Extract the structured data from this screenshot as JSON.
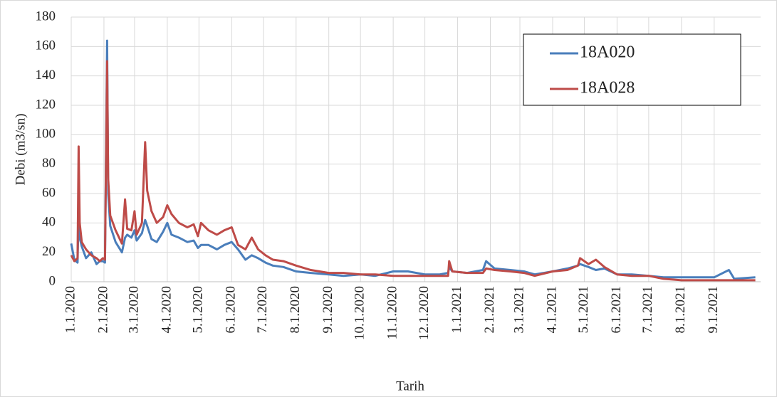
{
  "chart_data": {
    "type": "line",
    "y_label": "Debi (m3/sn)",
    "x_label": "Tarih",
    "x": [
      "1.1.2020",
      "4.1.2020",
      "7.1.2020",
      "8.1.2020",
      "9.1.2020",
      "11.1.2020",
      "15.1.2020",
      "20.1.2020",
      "25.1.2020",
      "28.1.2020",
      "31.1.2020",
      "2.2.2020",
      "4.2.2020",
      "5.2.2020",
      "7.2.2020",
      "12.2.2020",
      "18.2.2020",
      "21.2.2020",
      "23.2.2020",
      "27.2.2020",
      "1.3.2020",
      "3.3.2020",
      "8.3.2020",
      "11.3.2020",
      "13.3.2020",
      "17.3.2020",
      "22.3.2020",
      "28.3.2020",
      "1.4.2020",
      "5.4.2020",
      "12.4.2020",
      "20.4.2020",
      "26.4.2020",
      "30.4.2020",
      "3.5.2020",
      "10.5.2020",
      "18.5.2020",
      "25.5.2020",
      "1.6.2020",
      "7.6.2020",
      "14.6.2020",
      "20.6.2020",
      "26.6.2020",
      "3.7.2020",
      "10.7.2020",
      "20.7.2020",
      "1.8.2020",
      "15.8.2020",
      "1.9.2020",
      "15.9.2020",
      "1.10.2020",
      "15.10.2020",
      "1.11.2020",
      "15.11.2020",
      "1.12.2020",
      "15.12.2020",
      "23.12.2020",
      "24.12.2020",
      "27.12.2020",
      "10.1.2021",
      "25.1.2021",
      "28.1.2021",
      "5.2.2021",
      "20.2.2021",
      "5.3.2021",
      "15.3.2021",
      "1.4.2021",
      "15.4.2021",
      "25.4.2021",
      "27.4.2021",
      "5.5.2021",
      "12.5.2021",
      "20.5.2021",
      "1.6.2021",
      "15.6.2021",
      "1.7.2021",
      "15.7.2021",
      "1.8.2021",
      "15.8.2021",
      "1.9.2021",
      "15.9.2021",
      "20.9.2021",
      "10.10.2021"
    ],
    "series": [
      {
        "name": "18A020",
        "color": "#4a7ebb",
        "values": [
          26,
          15,
          13,
          45,
          30,
          24,
          16,
          20,
          12,
          14,
          14,
          13,
          164,
          60,
          38,
          27,
          20,
          30,
          32,
          30,
          35,
          28,
          33,
          42,
          38,
          29,
          27,
          34,
          40,
          32,
          30,
          27,
          28,
          23,
          25,
          25,
          22,
          25,
          27,
          22,
          15,
          18,
          16,
          13,
          11,
          10,
          7,
          6,
          5,
          4,
          5,
          4,
          7,
          7,
          5,
          5,
          6,
          10,
          7,
          6,
          8,
          14,
          9,
          8,
          7,
          5,
          7,
          9,
          11,
          12,
          10,
          8,
          9,
          5,
          5,
          4,
          3,
          3,
          3,
          3,
          8,
          2,
          3
        ]
      },
      {
        "name": "18A028",
        "color": "#be4b48",
        "values": [
          18,
          14,
          16,
          92,
          40,
          27,
          22,
          18,
          16,
          14,
          16,
          15,
          150,
          70,
          45,
          35,
          26,
          56,
          36,
          35,
          48,
          32,
          40,
          95,
          62,
          48,
          40,
          44,
          52,
          46,
          40,
          37,
          39,
          31,
          40,
          35,
          32,
          35,
          37,
          25,
          22,
          30,
          22,
          18,
          15,
          14,
          11,
          8,
          6,
          6,
          5,
          5,
          4,
          4,
          4,
          4,
          4,
          14,
          7,
          6,
          6,
          9,
          8,
          7,
          6,
          4,
          7,
          8,
          11,
          16,
          12,
          15,
          10,
          5,
          4,
          4,
          2,
          1,
          1,
          1,
          1,
          1,
          1
        ]
      }
    ],
    "xlim": [
      "1.1.2020",
      "15.10.2021"
    ],
    "xticks": [
      "1.1.2020",
      "2.1.2020",
      "3.1.2020",
      "4.1.2020",
      "5.1.2020",
      "6.1.2020",
      "7.1.2020",
      "8.1.2020",
      "9.1.2020",
      "10.1.2020",
      "11.1.2020",
      "12.1.2020",
      "1.1.2021",
      "2.1.2021",
      "3.1.2021",
      "4.1.2021",
      "5.1.2021",
      "6.1.2021",
      "7.1.2021",
      "8.1.2021",
      "9.1.2021"
    ],
    "xtick_dates": [
      "1.1.2020",
      "1.2.2020",
      "1.3.2020",
      "1.4.2020",
      "1.5.2020",
      "1.6.2020",
      "1.7.2020",
      "1.8.2020",
      "1.9.2020",
      "1.10.2020",
      "1.11.2020",
      "1.12.2020",
      "1.1.2021",
      "1.2.2021",
      "1.3.2021",
      "1.4.2021",
      "1.5.2021",
      "1.6.2021",
      "1.7.2021",
      "1.8.2021",
      "1.9.2021"
    ],
    "ylim": [
      0,
      180
    ],
    "yticks": [
      0,
      20,
      40,
      60,
      80,
      100,
      120,
      140,
      160,
      180
    ],
    "grid": true,
    "legend": "upper right"
  }
}
